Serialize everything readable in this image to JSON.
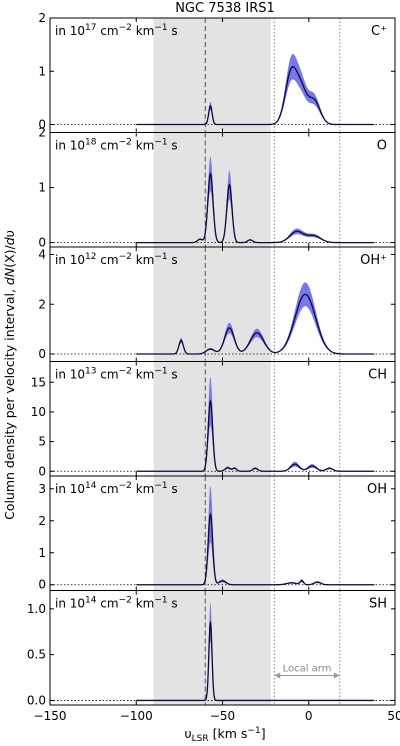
{
  "chart_data": {
    "type": "line",
    "title": "NGC 7538 IRS1",
    "xlabel": "υLSR [km s−1]",
    "ylabel": "Column density per velocity interval, dN(X)/dυ",
    "xlim": [
      -150,
      50
    ],
    "x_ticks": [
      -150,
      -100,
      -50,
      0,
      50
    ],
    "x_tick_labels": [
      "−150",
      "−100",
      "−50",
      "0",
      "50"
    ],
    "shaded_region": [
      -90,
      -22
    ],
    "dashed_line_x": -60,
    "dotted_lines_x": [
      -20,
      18
    ],
    "local_arm_label": "Local arm",
    "panels": [
      {
        "species": "C⁺",
        "unit_label": "in 10^17 cm^-2 km^-1 s",
        "unit_main": "in 10",
        "unit_exp": "17",
        "unit_rest": " cm",
        "unit_cm_exp": "−2",
        "unit_km": " km",
        "unit_km_exp": "−1",
        "unit_s": " s",
        "ylim": [
          -0.15,
          2.0
        ],
        "y_ticks": [
          0,
          1,
          2
        ],
        "gauss": [
          [
            -57,
            0.35,
            1.0
          ],
          [
            -10,
            1.0,
            3.5
          ],
          [
            -4,
            0.5,
            3.0
          ],
          [
            3,
            0.45,
            3.5
          ]
        ],
        "band": 0.22
      },
      {
        "species": "O",
        "unit_label": "in 10^18 cm^-2 km^-1 s",
        "unit_main": "in 10",
        "unit_exp": "18",
        "unit_rest": " cm",
        "unit_cm_exp": "−2",
        "unit_km": " km",
        "unit_km_exp": "−1",
        "unit_s": " s",
        "ylim": [
          -0.08,
          2.0
        ],
        "y_ticks": [
          0,
          1,
          2
        ],
        "gauss": [
          [
            -57,
            1.25,
            1.5
          ],
          [
            -46,
            1.05,
            1.5
          ],
          [
            -7,
            0.2,
            4
          ],
          [
            3,
            0.12,
            4
          ],
          [
            -34,
            0.05,
            1.5
          ],
          [
            -63,
            0.06,
            1.5
          ]
        ],
        "band": 0.25
      },
      {
        "species": "OH⁺",
        "unit_label": "in 10^12 cm^-2 km^-1 s",
        "unit_main": "in 10",
        "unit_exp": "12",
        "unit_rest": " cm",
        "unit_cm_exp": "−2",
        "unit_km": " km",
        "unit_km_exp": "−1",
        "unit_s": " s",
        "ylim": [
          -0.3,
          4.3
        ],
        "y_ticks": [
          0,
          2,
          4
        ],
        "gauss": [
          [
            -74,
            0.55,
            1.3
          ],
          [
            -57,
            0.2,
            2.5
          ],
          [
            -46,
            1.05,
            2.8
          ],
          [
            -30,
            0.85,
            4
          ],
          [
            -2,
            2.4,
            6
          ]
        ],
        "band": 0.2
      },
      {
        "species": "CH",
        "unit_label": "in 10^13 cm^-2 km^-1 s",
        "unit_main": "in 10",
        "unit_exp": "13",
        "unit_rest": " cm",
        "unit_cm_exp": "−2",
        "unit_km": " km",
        "unit_km_exp": "−1",
        "unit_s": " s",
        "ylim": [
          -0.8,
          18.5
        ],
        "y_ticks": [
          0,
          5,
          10,
          15
        ],
        "gauss": [
          [
            -57,
            11.8,
            1.3
          ],
          [
            -47,
            0.6,
            1.5
          ],
          [
            -43,
            0.5,
            1.2
          ],
          [
            -31,
            0.5,
            1.5
          ],
          [
            -8,
            1.2,
            2.5
          ],
          [
            2,
            0.9,
            2.5
          ],
          [
            12,
            0.5,
            2
          ]
        ],
        "band": 0.35
      },
      {
        "species": "OH",
        "unit_label": "in 10^14 cm^-2 km^-1 s",
        "unit_main": "in 10",
        "unit_exp": "14",
        "unit_rest": " cm",
        "unit_cm_exp": "−2",
        "unit_km": " km",
        "unit_km_exp": "−1",
        "unit_s": " s",
        "ylim": [
          -0.18,
          3.4
        ],
        "y_ticks": [
          0,
          1,
          2,
          3
        ],
        "gauss": [
          [
            -57,
            2.2,
            1.3
          ],
          [
            -50,
            0.12,
            2
          ],
          [
            -10,
            0.06,
            3
          ],
          [
            -4,
            0.12,
            1
          ],
          [
            5,
            0.08,
            2
          ]
        ],
        "band": 0.4
      },
      {
        "species": "SH",
        "unit_label": "in 10^14 cm^-2 km^-1 s",
        "unit_main": "in 10",
        "unit_exp": "14",
        "unit_rest": " cm",
        "unit_cm_exp": "−2",
        "unit_km": " km",
        "unit_km_exp": "−1",
        "unit_s": " s",
        "ylim": [
          -0.05,
          1.2
        ],
        "y_ticks": [
          0.0,
          0.5,
          1.0
        ],
        "y_tick_labels": [
          "0.0",
          "0.5",
          "1.0"
        ],
        "gauss": [
          [
            -57,
            0.86,
            0.9
          ]
        ],
        "band": 0.25
      }
    ]
  },
  "colors": {
    "line": "#0a0a3c",
    "band": "#7777ee",
    "shade": "#e3e3e3",
    "local_arm": "#999999"
  }
}
